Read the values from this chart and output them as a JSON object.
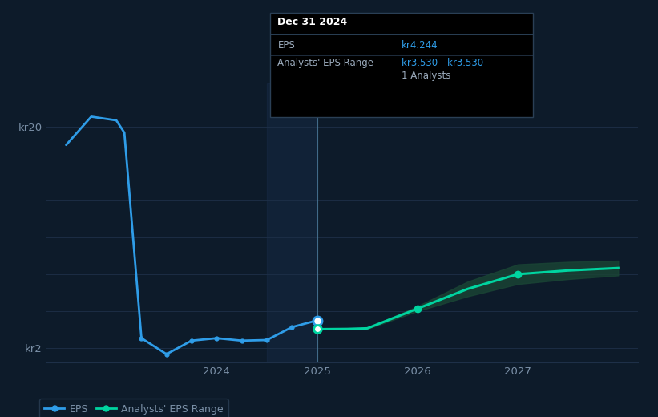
{
  "bg_color": "#0d1b2a",
  "plot_bg_color": "#0d1b2a",
  "shade_color": "#1b3050",
  "grid_color": "#1e3048",
  "text_color": "#7a8fa6",
  "blue_line_color": "#2f9de8",
  "teal_line_color": "#00d4a0",
  "teal_band_color": "#1a4535",
  "divider_color": "#5588aa",
  "actual_label_color": "#c8d8e8",
  "forecast_label_color": "#7a8fa6",
  "eps_x": [
    2022.5,
    2022.75,
    2023.0,
    2023.08,
    2023.25,
    2023.5,
    2023.75,
    2024.0,
    2024.25,
    2024.5,
    2024.75,
    2025.0
  ],
  "eps_y": [
    18.5,
    20.8,
    20.5,
    19.5,
    2.8,
    1.5,
    2.6,
    2.8,
    2.6,
    2.65,
    3.7,
    4.244
  ],
  "eps_dot_indices": [
    4,
    5,
    6,
    7,
    8,
    9,
    10
  ],
  "forecast_x": [
    2025.0,
    2025.3,
    2025.5,
    2026.0,
    2026.5,
    2027.0,
    2027.5,
    2028.0
  ],
  "forecast_y": [
    3.53,
    3.55,
    3.6,
    5.2,
    6.8,
    8.0,
    8.3,
    8.5
  ],
  "forecast_upper": [
    3.53,
    3.56,
    3.65,
    5.4,
    7.4,
    8.8,
    9.0,
    9.1
  ],
  "forecast_lower": [
    3.53,
    3.54,
    3.55,
    5.0,
    6.2,
    7.2,
    7.6,
    7.9
  ],
  "forecast_dot_indices": [
    3,
    5
  ],
  "divider_x": 2025.0,
  "xlim": [
    2022.3,
    2028.2
  ],
  "ylim_bottom": 0.8,
  "ylim_top": 23.5,
  "yticks": [
    2,
    20
  ],
  "ytick_labels": [
    "kr2",
    "kr20"
  ],
  "xtick_positions": [
    2024.0,
    2025.0,
    2026.0,
    2027.0
  ],
  "xtick_labels": [
    "2024",
    "2025",
    "2026",
    "2027"
  ],
  "tooltip_title": "Dec 31 2024",
  "tooltip_eps_label": "EPS",
  "tooltip_eps_value": "kr4.244",
  "tooltip_range_label": "Analysts' EPS Range",
  "tooltip_range_value": "kr3.530 - kr3.530",
  "tooltip_analysts": "1 Analysts",
  "tooltip_title_color": "#ffffff",
  "tooltip_label_color": "#9aaabb",
  "tooltip_value_color": "#2f9de8",
  "tooltip_bg": "#000000",
  "tooltip_border": "#2a3f55",
  "legend_eps_label": "EPS",
  "legend_range_label": "Analysts' EPS Range",
  "legend_bg": "#0d1b2a",
  "legend_border": "#2a3f55"
}
